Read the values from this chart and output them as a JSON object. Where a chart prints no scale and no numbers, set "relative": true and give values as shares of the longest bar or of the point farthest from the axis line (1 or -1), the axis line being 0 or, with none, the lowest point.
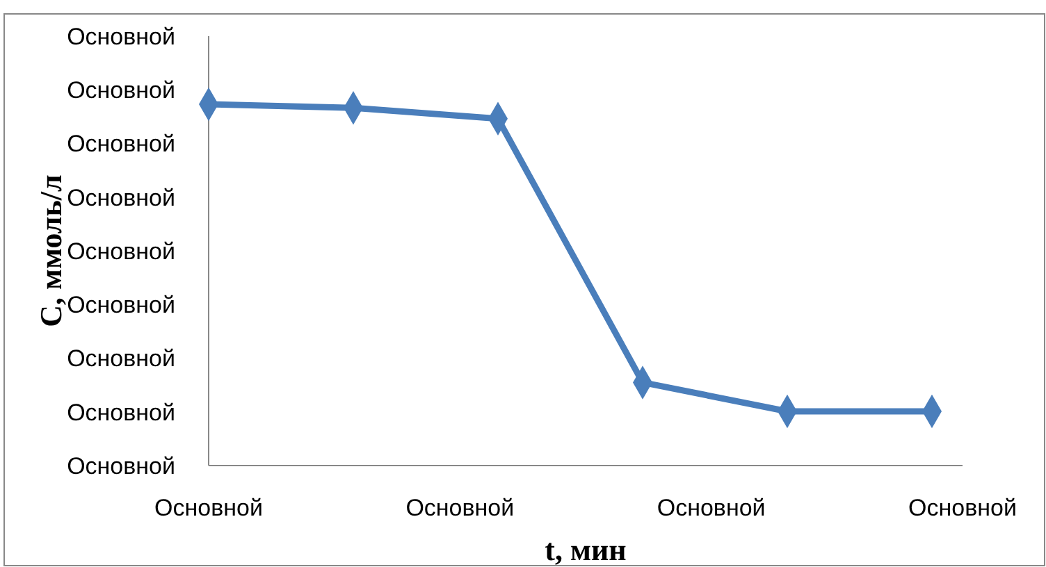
{
  "chart_data": {
    "type": "line",
    "xlabel": "t, мин",
    "ylabel": "С, ммоль/л",
    "relative": true,
    "categories": [
      null,
      null,
      null,
      null,
      null,
      null
    ],
    "series": [
      {
        "color": "#4a7ebb",
        "values": [
          1,
          0.99,
          0.96,
          0.23,
          0.15,
          0.15
        ]
      }
    ],
    "annotations": [
      "Основной",
      "Основной",
      "Основной",
      "Основной",
      "Основной",
      "Основной",
      "Основной",
      "Основной",
      "Основной",
      "Основной",
      "Основной",
      "Основной",
      "Основной"
    ],
    "grid": false,
    "marker": "diamond",
    "line_style": "solid"
  }
}
